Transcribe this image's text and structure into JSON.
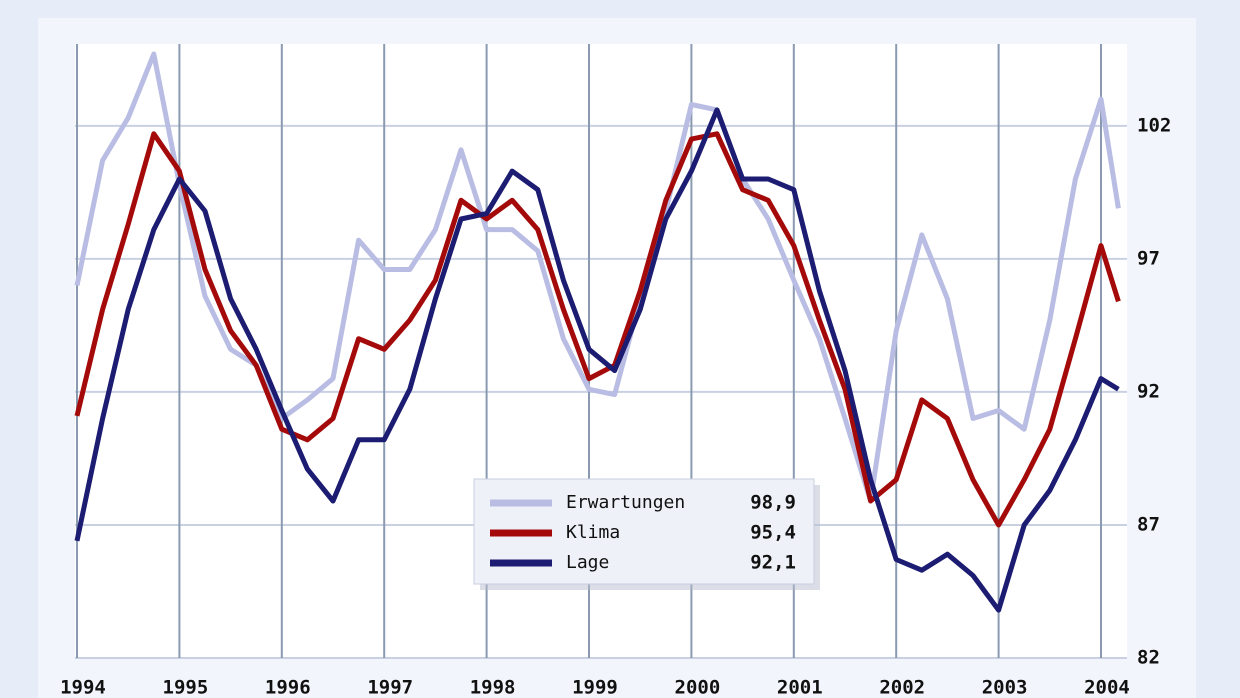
{
  "chart_data": {
    "type": "line",
    "x": [
      1994,
      1994.25,
      1994.5,
      1994.75,
      1995,
      1995.25,
      1995.5,
      1995.75,
      1996,
      1996.25,
      1996.5,
      1996.75,
      1997,
      1997.25,
      1997.5,
      1997.75,
      1998,
      1998.25,
      1998.5,
      1998.75,
      1999,
      1999.25,
      1999.5,
      1999.75,
      2000,
      2000.25,
      2000.5,
      2000.75,
      2001,
      2001.25,
      2001.5,
      2001.75,
      2002,
      2002.25,
      2002.5,
      2002.75,
      2003,
      2003.25,
      2003.5,
      2003.75,
      2004,
      2004.17
    ],
    "series": [
      {
        "name": "Erwartungen",
        "color": "#b9bde3",
        "value_label": "98,9",
        "values": [
          96.0,
          100.7,
          102.3,
          104.7,
          99.8,
          95.6,
          93.6,
          93.0,
          91.0,
          91.7,
          92.5,
          97.7,
          96.6,
          96.6,
          98.1,
          101.1,
          98.1,
          98.1,
          97.3,
          94.0,
          92.1,
          91.9,
          95.5,
          98.8,
          102.8,
          102.6,
          100.0,
          98.5,
          96.2,
          94.0,
          91.0,
          87.9,
          94.3,
          97.9,
          95.5,
          91.0,
          91.3,
          90.6,
          94.7,
          100.0,
          103.0,
          98.9
        ]
      },
      {
        "name": "Klima",
        "color": "#a50a0a",
        "value_label": "95,4",
        "values": [
          91.1,
          95.1,
          98.3,
          101.7,
          100.3,
          96.6,
          94.3,
          93.0,
          90.6,
          90.2,
          91.0,
          94.0,
          93.6,
          94.7,
          96.2,
          99.2,
          98.5,
          99.2,
          98.1,
          95.1,
          92.5,
          93.0,
          95.8,
          99.2,
          101.5,
          101.7,
          99.6,
          99.2,
          97.5,
          94.7,
          92.1,
          87.9,
          88.7,
          91.7,
          91.0,
          88.7,
          87.0,
          88.7,
          90.6,
          94.0,
          97.5,
          95.4
        ]
      },
      {
        "name": "Lage",
        "color": "#1c1c72",
        "value_label": "92,1",
        "values": [
          86.4,
          91.0,
          95.1,
          98.1,
          100.0,
          98.8,
          95.5,
          93.6,
          91.3,
          89.1,
          87.9,
          90.2,
          90.2,
          92.1,
          95.5,
          98.5,
          98.7,
          100.3,
          99.6,
          96.2,
          93.6,
          92.8,
          95.1,
          98.5,
          100.3,
          102.6,
          100.0,
          100.0,
          99.6,
          95.8,
          92.8,
          88.7,
          85.7,
          85.3,
          85.9,
          85.1,
          83.8,
          87.0,
          88.3,
          90.2,
          92.5,
          92.1
        ]
      }
    ],
    "xlim": [
      1994,
      2004.25
    ],
    "xticks": [
      1994,
      1995,
      1996,
      1997,
      1998,
      1999,
      2000,
      2001,
      2002,
      2003,
      2004
    ],
    "ylim": [
      82,
      105
    ],
    "yticks": [
      82,
      87,
      92,
      97,
      102
    ],
    "grid": true,
    "legend": "bottom-center"
  }
}
